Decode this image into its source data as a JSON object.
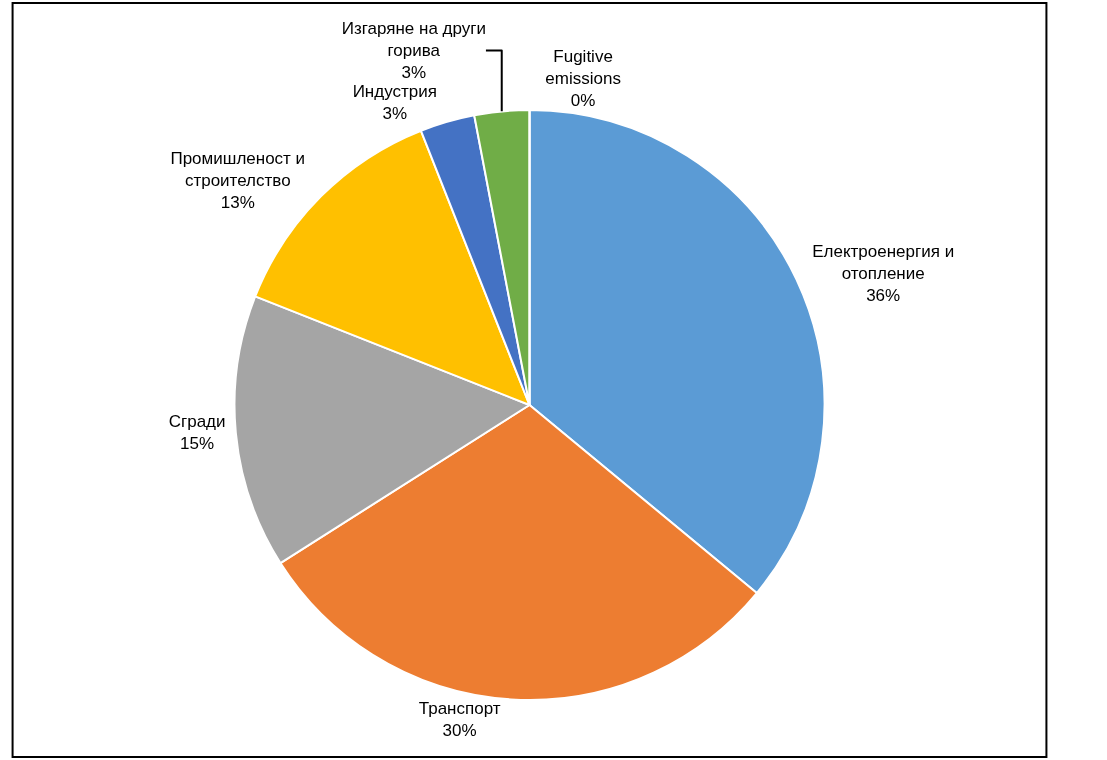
{
  "chart_data": {
    "type": "pie",
    "categories": [
      "Електроенергия и отопление",
      "Транспорт",
      "Сгради",
      "Промишленост и строителство",
      "Индустрия",
      "Изгаряне на други горива",
      "Fugitive emissions"
    ],
    "values": [
      36,
      30,
      15,
      13,
      3,
      3,
      0
    ],
    "value_labels": [
      "36%",
      "30%",
      "15%",
      "13%",
      "3%",
      "3%",
      "0%"
    ],
    "colors": [
      "#5b9bd5",
      "#ed7d31",
      "#a5a5a5",
      "#ffc000",
      "#4472c4",
      "#70ad47",
      "#255e91"
    ],
    "legend": false
  }
}
